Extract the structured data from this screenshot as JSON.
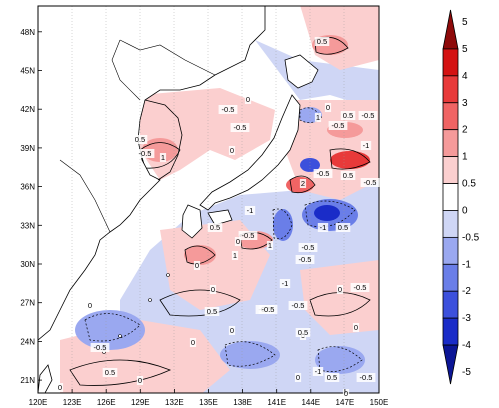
{
  "map": {
    "lon_range": [
      120,
      150
    ],
    "lat_range": [
      20,
      50
    ],
    "x_ticks": [
      "120E",
      "123E",
      "126E",
      "129E",
      "132E",
      "135E",
      "138E",
      "141E",
      "144E",
      "147E",
      "150E"
    ],
    "y_ticks": [
      "21N",
      "24N",
      "27N",
      "30N",
      "33N",
      "36N",
      "39N",
      "42N",
      "45N",
      "48N"
    ],
    "contour_labels": [
      "0.5",
      "0",
      "-0.5",
      "0.5",
      "-0.5",
      "1",
      "0",
      "-0.5",
      "1",
      "0",
      "-0.5",
      "0.5",
      "-0.5",
      "-1",
      "2",
      "-0.5",
      "0.5",
      "-0.5",
      "-1",
      "0.5",
      "-0.5",
      "-1",
      "0.5",
      "1",
      "1",
      "0",
      "-0.5",
      "-0.5",
      "-1",
      "-0.5",
      "0",
      "0",
      "0",
      "0.5",
      "-0.5",
      "0",
      "-0.5",
      "-0.5",
      "0",
      "0.5",
      "0",
      "0",
      "0.5",
      "-0.5",
      "0",
      "0",
      "0",
      "0",
      "0.5",
      "-1",
      "0",
      "-0.5"
    ]
  },
  "colorbar": {
    "labels": [
      "5",
      "4",
      "3",
      "2",
      "1",
      "0.5",
      "0",
      "-0.5",
      "-1",
      "-2",
      "-3",
      "-4",
      "-5"
    ],
    "colors": [
      "#8e0a0a",
      "#d41212",
      "#e83a3a",
      "#f06464",
      "#f59a9a",
      "#fbcfcf",
      "#ffffff",
      "#cfd6f5",
      "#9aa8f0",
      "#6a7ee8",
      "#3c50dc",
      "#1a2cc8",
      "#0c1696"
    ]
  }
}
